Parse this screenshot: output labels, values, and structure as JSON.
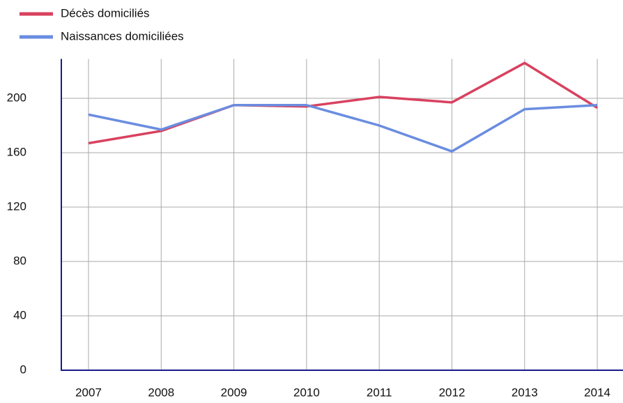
{
  "chart_data": {
    "type": "line",
    "categories": [
      "2007",
      "2008",
      "2009",
      "2010",
      "2011",
      "2012",
      "2013",
      "2014"
    ],
    "series": [
      {
        "name": "Décès domiciliés",
        "color": "#d9415f",
        "values": [
          167,
          176,
          195,
          194,
          201,
          197,
          226,
          193
        ]
      },
      {
        "name": "Naissances domiciliées",
        "color": "#6a8de0",
        "values": [
          188,
          177,
          195,
          195,
          180,
          161,
          192,
          195
        ]
      }
    ],
    "ylim": [
      0,
      229
    ],
    "yticks": [
      0,
      40,
      80,
      120,
      160,
      200
    ],
    "grid": true,
    "legend": "top-left"
  }
}
